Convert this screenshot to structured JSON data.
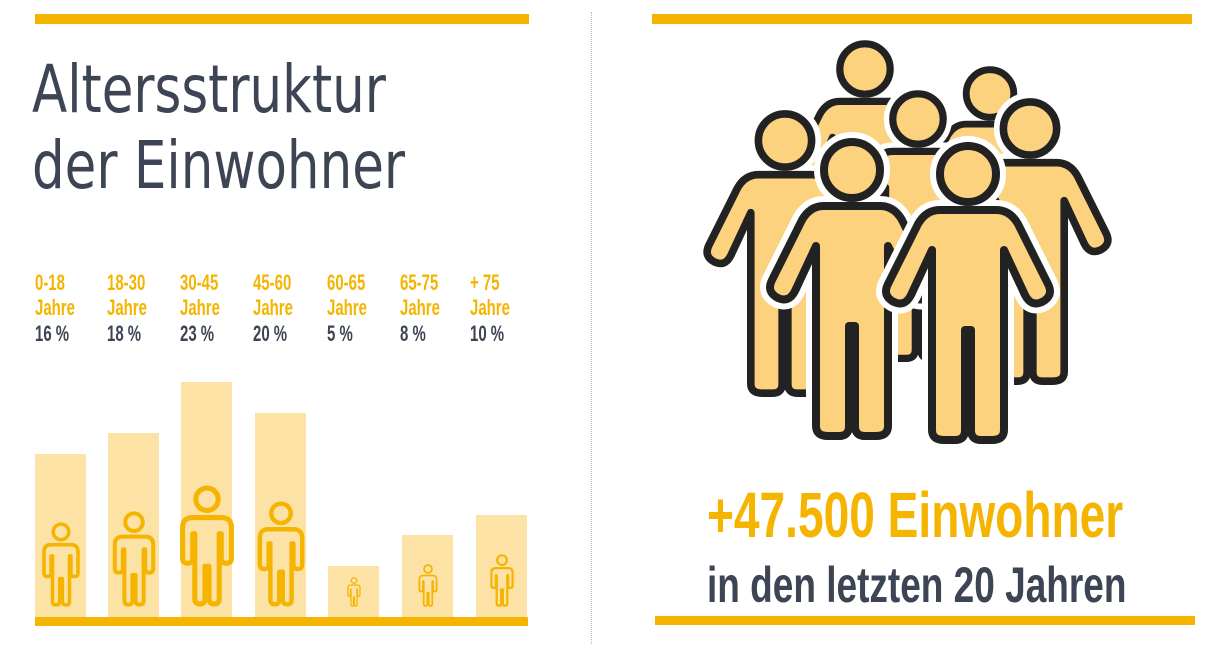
{
  "title": {
    "line1": "Altersstruktur",
    "line2": "der Einwohner"
  },
  "chart_data": {
    "type": "bar",
    "title": "Altersstruktur der Einwohner",
    "categories": [
      "0-18 Jahre",
      "18-30 Jahre",
      "30-45 Jahre",
      "45-60 Jahre",
      "60-65 Jahre",
      "65-75 Jahre",
      "+ 75 Jahre"
    ],
    "values": [
      16,
      18,
      23,
      20,
      5,
      8,
      10
    ],
    "unit": "%",
    "labels": [
      {
        "range": "0-18",
        "unit": "Jahre",
        "percent": "16 %"
      },
      {
        "range": "18-30",
        "unit": "Jahre",
        "percent": "18 %"
      },
      {
        "range": "30-45",
        "unit": "Jahre",
        "percent": "23 %"
      },
      {
        "range": "45-60",
        "unit": "Jahre",
        "percent": "20 %"
      },
      {
        "range": "60-65",
        "unit": "Jahre",
        "percent": "5 %"
      },
      {
        "range": "65-75",
        "unit": "Jahre",
        "percent": "8 %"
      },
      {
        "range": "+ 75",
        "unit": "Jahre",
        "percent": "10 %"
      }
    ],
    "ylim": [
      0,
      23
    ],
    "grid": false,
    "legend": "none"
  },
  "colors": {
    "accent": "#f5b400",
    "bar_fill": "#fde2a6",
    "text_dark": "#3d4554",
    "person_fill": "#fdd27e",
    "person_outline": "#222222"
  },
  "icons": {
    "bar_person": "person-outline-icon",
    "crowd": "group-of-people-icon"
  },
  "stat": {
    "headline": "+47.500 Einwohner",
    "subline": "in den letzten 20 Jahren"
  }
}
